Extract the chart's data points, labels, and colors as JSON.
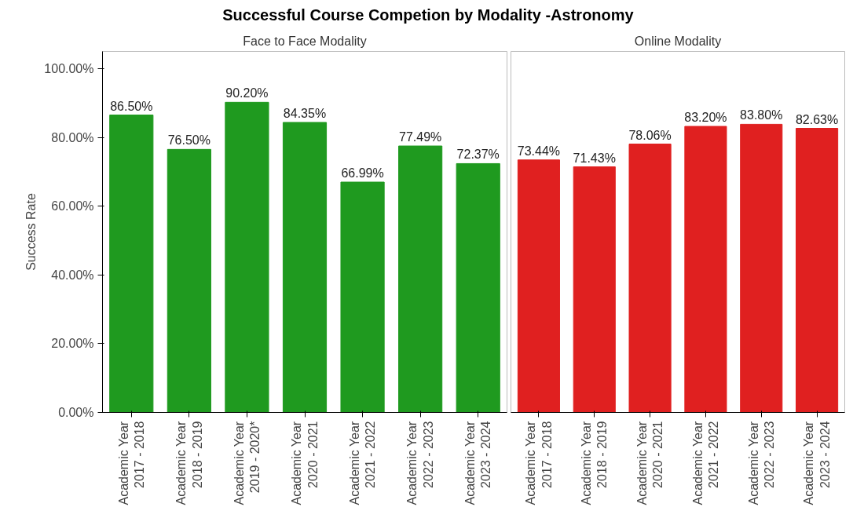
{
  "chart_data": [
    {
      "type": "bar",
      "title": "Successful Course Competion by Modality -Astronomy",
      "subtitle": "Face to Face Modality",
      "ylabel": "Success Rate",
      "categories": [
        "Academic Year\n2017 - 2018",
        "Academic Year\n2018 - 2019",
        "Academic Year\n2019 - 2020*",
        "Academic Year\n2020 - 2021",
        "Academic Year\n2021 - 2022",
        "Academic Year\n2022 - 2023",
        "Academic Year\n2023 - 2024"
      ],
      "series": [
        {
          "color": "#1f9a1f",
          "values": [
            86.5,
            76.5,
            90.2,
            84.35,
            66.99,
            77.49,
            72.37
          ],
          "value_labels": [
            "86.50%",
            "76.50%",
            "90.20%",
            "84.35%",
            "66.99%",
            "77.49%",
            "72.37%"
          ]
        }
      ],
      "ylim": [
        0,
        105
      ],
      "yticks": [
        {
          "value": 0,
          "label": "0.00%"
        },
        {
          "value": 20,
          "label": "20.00%"
        },
        {
          "value": 40,
          "label": "40.00%"
        },
        {
          "value": 60,
          "label": "60.00%"
        },
        {
          "value": 80,
          "label": "80.00%"
        },
        {
          "value": 100,
          "label": "100.00%"
        }
      ],
      "grid": false
    },
    {
      "type": "bar",
      "subtitle": "Online Modality",
      "categories": [
        "Academic Year\n2017 - 2018",
        "Academic Year\n2018 - 2019",
        "Academic Year\n2020 - 2021",
        "Academic Year\n2021 - 2022",
        "Academic Year\n2022 - 2023",
        "Academic Year\n2023 - 2024"
      ],
      "series": [
        {
          "color": "#e02020",
          "values": [
            73.44,
            71.43,
            78.06,
            83.2,
            83.8,
            82.63
          ],
          "value_labels": [
            "73.44%",
            "71.43%",
            "78.06%",
            "83.20%",
            "83.80%",
            "82.63%"
          ]
        }
      ],
      "ylim": [
        0,
        105
      ],
      "tick_labels": "x",
      "grid": false
    }
  ]
}
